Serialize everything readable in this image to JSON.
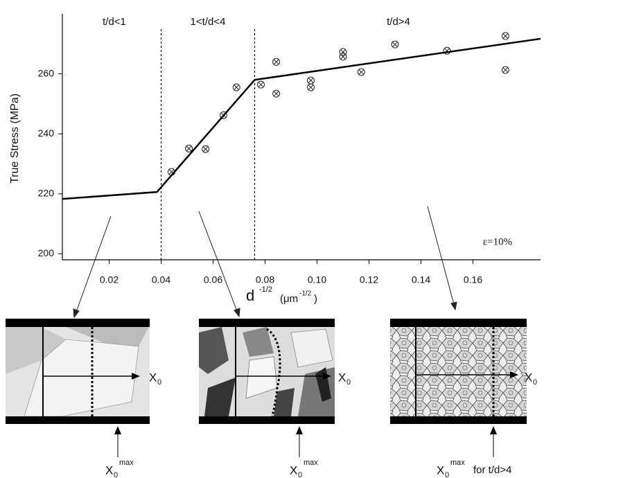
{
  "chart_data": {
    "type": "scatter",
    "y_label": "True Stress (MPa)",
    "x_label": {
      "base": "d",
      "exp": "-1/2",
      "unit": "(μm",
      "unit_exp": "-1/2",
      "close": ")"
    },
    "xlim": [
      0.002,
      0.186
    ],
    "ylim": [
      198,
      280
    ],
    "xticks": [
      0.02,
      0.04,
      0.06,
      0.08,
      {
        "value": 0.1,
        "label": "0.10"
      },
      0.12,
      0.14,
      0.16
    ],
    "yticks": [
      200,
      220,
      240,
      260
    ],
    "boundaries": [
      0.04,
      0.076
    ],
    "regions": [
      "t/d<1",
      "1<t/d<4",
      "t/d>4"
    ],
    "annotation": "ε=10%",
    "series": [
      {
        "kind": "markers",
        "color": "#222",
        "x": [
          0.044,
          0.0507,
          0.0571,
          0.064,
          0.069,
          0.0784,
          0.0843,
          0.0843,
          0.0976,
          0.0976,
          0.11,
          0.11,
          0.117,
          0.13,
          0.15,
          0.1725,
          0.1725
        ],
        "values": [
          227.3,
          235.1,
          234.9,
          246.2,
          255.5,
          256.4,
          264.0,
          253.4,
          257.8,
          255.5,
          267.3,
          265.7,
          260.6,
          269.8,
          267.7,
          272.6,
          261.3
        ]
      },
      {
        "kind": "line",
        "color": "#000",
        "x": [
          0.0021,
          0.0384,
          0.076,
          0.186
        ],
        "values": [
          218.3,
          220.6,
          258.0,
          271.7
        ]
      }
    ]
  },
  "insets": [
    {
      "arrow_label": "X",
      "arrow_sub": "0",
      "bottom_label": "X",
      "bottom_sub": "0",
      "bottom_sup": "max"
    },
    {
      "arrow_label": "X",
      "arrow_sub": "0",
      "bottom_label": "X",
      "bottom_sub": "0",
      "bottom_sup": "max"
    },
    {
      "arrow_label": "X",
      "arrow_sub": "0",
      "bottom_label": "X",
      "bottom_sub": "0",
      "bottom_sup": "max",
      "bottom_extra": "for t/d>4"
    }
  ]
}
